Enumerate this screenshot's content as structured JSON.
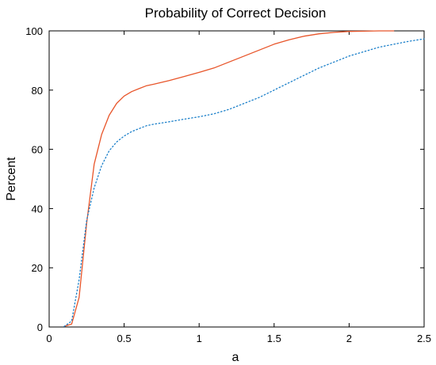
{
  "chart_data": {
    "type": "line",
    "title": "Probability of Correct Decision",
    "xlabel": "a",
    "ylabel": "Percent",
    "xlim": [
      0,
      2.5
    ],
    "ylim": [
      0,
      100
    ],
    "xticks": [
      0,
      0.5,
      1,
      1.5,
      2,
      2.5
    ],
    "xtick_labels": [
      "0",
      "0.5",
      "1",
      "1.5",
      "2",
      "2.5"
    ],
    "yticks": [
      0,
      20,
      40,
      60,
      80,
      100
    ],
    "ytick_labels": [
      "0",
      "20",
      "40",
      "60",
      "80",
      "100"
    ],
    "grid": false,
    "legend": "none",
    "series": [
      {
        "color": "#e8552a",
        "style": "solid",
        "points": [
          [
            0.1,
            0.2
          ],
          [
            0.15,
            1.0
          ],
          [
            0.2,
            10
          ],
          [
            0.25,
            35
          ],
          [
            0.3,
            55
          ],
          [
            0.35,
            65
          ],
          [
            0.4,
            71.5
          ],
          [
            0.45,
            75.5
          ],
          [
            0.5,
            78
          ],
          [
            0.55,
            79.5
          ],
          [
            0.6,
            80.5
          ],
          [
            0.65,
            81.5
          ],
          [
            0.7,
            82
          ],
          [
            0.8,
            83.2
          ],
          [
            0.9,
            84.6
          ],
          [
            1.0,
            86
          ],
          [
            1.1,
            87.5
          ],
          [
            1.2,
            89.5
          ],
          [
            1.3,
            91.5
          ],
          [
            1.4,
            93.5
          ],
          [
            1.5,
            95.5
          ],
          [
            1.6,
            97
          ],
          [
            1.7,
            98.2
          ],
          [
            1.8,
            99
          ],
          [
            1.9,
            99.5
          ],
          [
            2.0,
            99.8
          ],
          [
            2.1,
            99.9
          ],
          [
            2.2,
            100
          ],
          [
            2.3,
            100
          ]
        ]
      },
      {
        "color": "#1a7fc9",
        "style": "dotted",
        "points": [
          [
            0.1,
            0.2
          ],
          [
            0.15,
            2.0
          ],
          [
            0.2,
            16
          ],
          [
            0.25,
            36
          ],
          [
            0.3,
            47
          ],
          [
            0.35,
            54.5
          ],
          [
            0.4,
            59.5
          ],
          [
            0.45,
            62.5
          ],
          [
            0.5,
            64.5
          ],
          [
            0.55,
            66
          ],
          [
            0.6,
            67
          ],
          [
            0.65,
            68
          ],
          [
            0.7,
            68.5
          ],
          [
            0.8,
            69.3
          ],
          [
            0.9,
            70.2
          ],
          [
            1.0,
            71
          ],
          [
            1.1,
            72
          ],
          [
            1.2,
            73.5
          ],
          [
            1.3,
            75.5
          ],
          [
            1.4,
            77.5
          ],
          [
            1.5,
            80
          ],
          [
            1.6,
            82.5
          ],
          [
            1.7,
            85
          ],
          [
            1.8,
            87.5
          ],
          [
            1.9,
            89.5
          ],
          [
            2.0,
            91.5
          ],
          [
            2.1,
            93
          ],
          [
            2.2,
            94.5
          ],
          [
            2.3,
            95.5
          ],
          [
            2.4,
            96.5
          ],
          [
            2.5,
            97.3
          ]
        ]
      }
    ]
  }
}
